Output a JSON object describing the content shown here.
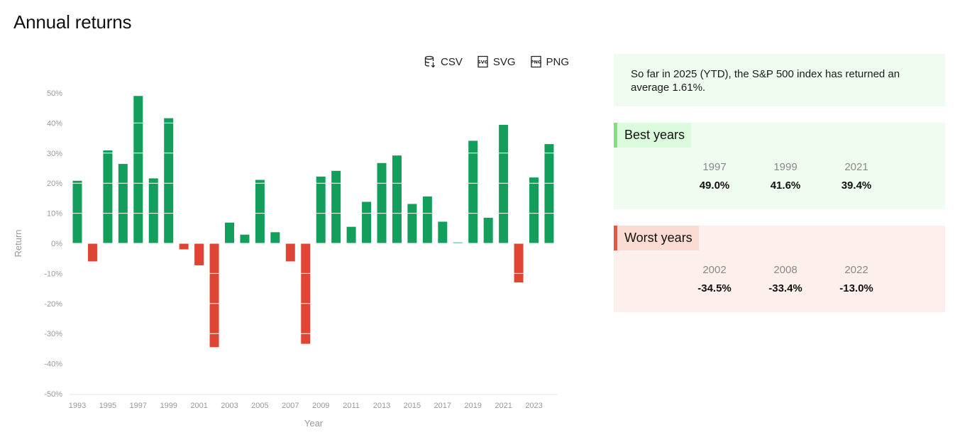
{
  "page": {
    "title": "Annual returns"
  },
  "exports": [
    {
      "label": "CSV",
      "icon": "database-download-icon"
    },
    {
      "label": "SVG",
      "icon": "svg-file-icon"
    },
    {
      "label": "PNG",
      "icon": "png-file-icon"
    }
  ],
  "summary": {
    "text": "So far in 2025 (YTD), the S&P 500 index has returned an average 1.61%."
  },
  "best": {
    "title": "Best years",
    "items": [
      {
        "year": "1997",
        "value": "49.0%"
      },
      {
        "year": "1999",
        "value": "41.6%"
      },
      {
        "year": "2021",
        "value": "39.4%"
      }
    ]
  },
  "worst": {
    "title": "Worst years",
    "items": [
      {
        "year": "2002",
        "value": "-34.5%"
      },
      {
        "year": "2008",
        "value": "-33.4%"
      },
      {
        "year": "2022",
        "value": "-13.0%"
      }
    ]
  },
  "colors": {
    "positive": "#139e5c",
    "negative": "#df4535",
    "axis_text": "#999999",
    "grid": "#ffffff"
  },
  "chart_data": {
    "type": "bar",
    "xlabel": "Year",
    "ylabel": "Return",
    "ylim": [
      -50,
      50
    ],
    "y_ticks": [
      50,
      40,
      30,
      20,
      10,
      0,
      -10,
      -20,
      -30,
      -40,
      -50
    ],
    "y_tick_labels": [
      "50%",
      "40%",
      "30%",
      "20%",
      "10%",
      "0%",
      "-10%",
      "-20%",
      "-30%",
      "-40%",
      "-50%"
    ],
    "x_tick_labels": [
      "1993",
      "1995",
      "1997",
      "1999",
      "2001",
      "2003",
      "2005",
      "2007",
      "2009",
      "2011",
      "2013",
      "2015",
      "2017",
      "2019",
      "2021",
      "2023"
    ],
    "categories": [
      "1993",
      "1994",
      "1995",
      "1996",
      "1997",
      "1998",
      "1999",
      "2000",
      "2001",
      "2002",
      "2003",
      "2004",
      "2005",
      "2006",
      "2007",
      "2008",
      "2009",
      "2010",
      "2011",
      "2012",
      "2013",
      "2014",
      "2015",
      "2016",
      "2017",
      "2018",
      "2019",
      "2020",
      "2021",
      "2022",
      "2023",
      "2024"
    ],
    "values": [
      20.8,
      -6.0,
      30.9,
      26.4,
      49.0,
      21.6,
      41.6,
      -2.0,
      -7.3,
      -34.5,
      6.9,
      2.9,
      21.1,
      3.7,
      -6.0,
      -33.4,
      22.2,
      24.1,
      5.5,
      13.8,
      26.7,
      29.2,
      13.1,
      15.6,
      7.2,
      0.3,
      34.1,
      8.5,
      39.4,
      -13.0,
      21.9,
      33.0
    ],
    "grid": true
  }
}
